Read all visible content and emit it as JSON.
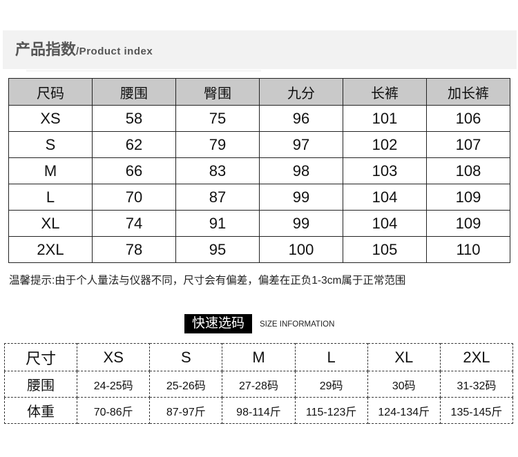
{
  "header": {
    "title_cn": "产品指数",
    "title_en": "/Product index"
  },
  "product_table": {
    "columns": [
      "尺码",
      "腰围",
      "臀围",
      "九分",
      "长裤",
      "加长裤"
    ],
    "rows": [
      [
        "XS",
        "58",
        "75",
        "96",
        "101",
        "106"
      ],
      [
        "S",
        "62",
        "79",
        "97",
        "102",
        "107"
      ],
      [
        "M",
        "66",
        "83",
        "98",
        "103",
        "108"
      ],
      [
        "L",
        "70",
        "87",
        "99",
        "104",
        "109"
      ],
      [
        "XL",
        "74",
        "91",
        "99",
        "104",
        "109"
      ],
      [
        "2XL",
        "78",
        "95",
        "100",
        "105",
        "110"
      ]
    ]
  },
  "note": "温馨提示:由于个人量法与仪器不同，尺寸会有偏差，偏差在正负1-3cm属于正常范围",
  "quick_select": {
    "title_cn": "快速选码",
    "title_en": "SIZE INFORMATION"
  },
  "size_table": {
    "columns": [
      "尺寸",
      "XS",
      "S",
      "M",
      "L",
      "XL",
      "2XL"
    ],
    "rows": [
      [
        "腰围",
        "24-25码",
        "25-26码",
        "27-28码",
        "29码",
        "30码",
        "31-32码"
      ],
      [
        "体重",
        "70-86斤",
        "87-97斤",
        "98-114斤",
        "115-123斤",
        "124-134斤",
        "135-145斤"
      ]
    ]
  }
}
